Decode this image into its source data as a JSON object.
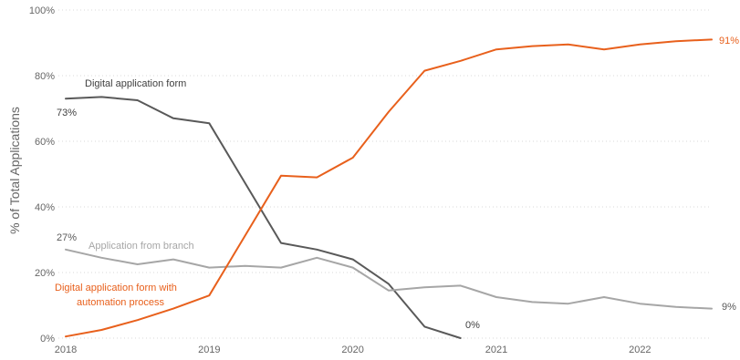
{
  "chart_data": {
    "type": "line",
    "title": "",
    "xlabel": "",
    "ylabel": "% of Total Applications",
    "xlim": [
      2018,
      2022.5
    ],
    "ylim": [
      0,
      100
    ],
    "x_ticks": [
      "2018",
      "2019",
      "2020",
      "2021",
      "2022"
    ],
    "y_ticks": [
      "0%",
      "20%",
      "40%",
      "60%",
      "80%",
      "100%"
    ],
    "grid": "horizontal dotted",
    "legend": "none (series labelled directly on the lines)",
    "series": [
      {
        "name": "Digital application form",
        "color": "#595959",
        "x": [
          2018,
          2018.25,
          2018.5,
          2018.75,
          2019,
          2019.5,
          2019.75,
          2020,
          2020.25,
          2020.5,
          2020.75
        ],
        "y": [
          73,
          73.5,
          72.5,
          67,
          65.5,
          29,
          27,
          24,
          16.5,
          3.5,
          0
        ]
      },
      {
        "name": "Application from branch",
        "color": "#a6a6a6",
        "x": [
          2018,
          2018.25,
          2018.5,
          2018.75,
          2019,
          2019.25,
          2019.5,
          2019.75,
          2020,
          2020.25,
          2020.5,
          2020.75,
          2021,
          2021.25,
          2021.5,
          2021.75,
          2022,
          2022.25,
          2022.5
        ],
        "y": [
          27,
          24.5,
          22.5,
          24,
          21.5,
          22,
          21.5,
          24.5,
          21.5,
          14.5,
          15.5,
          16,
          12.5,
          11,
          10.5,
          12.5,
          10.5,
          9.5,
          9
        ]
      },
      {
        "name": "Digital application form with automation process",
        "color": "#e8601c",
        "x": [
          2018,
          2018.25,
          2018.5,
          2018.75,
          2019,
          2019.5,
          2019.75,
          2020,
          2020.25,
          2020.5,
          2020.75,
          2021,
          2021.25,
          2021.5,
          2021.75,
          2022,
          2022.25,
          2022.5
        ],
        "y": [
          0.5,
          2.5,
          5.5,
          9,
          13,
          49.5,
          49,
          55,
          69,
          81.5,
          84.5,
          88,
          89,
          89.5,
          88,
          89.5,
          90.5,
          91
        ]
      }
    ],
    "annotations": [
      {
        "key": "digital_name",
        "series": 0,
        "text": "Digital application form"
      },
      {
        "key": "digital_start",
        "series": 0,
        "text": "73%"
      },
      {
        "key": "digital_end",
        "series": 0,
        "text": "0%"
      },
      {
        "key": "branch_name",
        "series": 1,
        "text": "Application from branch"
      },
      {
        "key": "branch_start",
        "series": 1,
        "text": "27%"
      },
      {
        "key": "branch_end",
        "series": 1,
        "text": "9%"
      },
      {
        "key": "auto_name_1",
        "series": 2,
        "text": "Digital application form with"
      },
      {
        "key": "auto_name_2",
        "series": 2,
        "text": "automation process"
      },
      {
        "key": "auto_end",
        "series": 2,
        "text": "91%"
      }
    ]
  }
}
